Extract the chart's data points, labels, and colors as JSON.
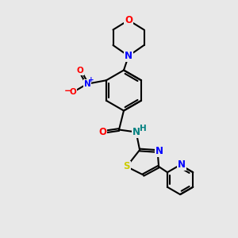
{
  "background_color": "#e8e8e8",
  "bond_color": "#000000",
  "bond_width": 1.5,
  "atom_colors": {
    "O": "#ff0000",
    "N": "#0000ff",
    "S": "#cccc00",
    "N_amide": "#008080",
    "C": "#000000"
  },
  "font_size_atom": 8.5,
  "font_size_small": 7
}
